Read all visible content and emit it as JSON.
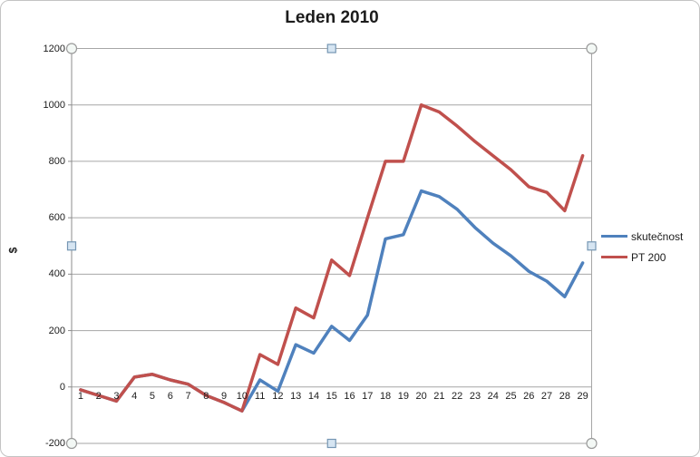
{
  "window": {
    "title": "Leden 2010"
  },
  "chart_data": {
    "type": "line",
    "title": "Leden 2010",
    "xlabel": "",
    "ylabel": "$",
    "ylim": [
      -200,
      1200
    ],
    "y_tick_step": 200,
    "y_ticks": [
      "-200",
      "0",
      "200",
      "400",
      "600",
      "800",
      "1000",
      "1200"
    ],
    "categories": [
      "1",
      "2",
      "3",
      "4",
      "5",
      "6",
      "7",
      "8",
      "9",
      "10",
      "11",
      "12",
      "13",
      "14",
      "15",
      "16",
      "17",
      "18",
      "19",
      "20",
      "21",
      "22",
      "23",
      "24",
      "25",
      "26",
      "27",
      "28",
      "29"
    ],
    "grid": true,
    "legend_position": "right",
    "series": [
      {
        "name": "skutečnost",
        "color": "#4F81BD",
        "values": [
          -10,
          -30,
          -50,
          35,
          45,
          25,
          10,
          -30,
          -55,
          -85,
          25,
          -15,
          150,
          120,
          215,
          165,
          255,
          525,
          540,
          695,
          675,
          630,
          565,
          510,
          465,
          410,
          375,
          320,
          440
        ]
      },
      {
        "name": "PT 200",
        "color": "#C0504D",
        "values": [
          -10,
          -30,
          -50,
          35,
          45,
          25,
          10,
          -30,
          -55,
          -85,
          115,
          80,
          280,
          245,
          450,
          395,
          600,
          800,
          800,
          1000,
          975,
          925,
          870,
          820,
          770,
          710,
          690,
          625,
          820
        ]
      }
    ],
    "colors": {
      "gridline": "#A6A6A6",
      "axis_line": "#8C8C8C",
      "handle_circle_fill": "#F3F8F5",
      "handle_circle_stroke": "#9A9A9A",
      "handle_square_fill": "#D6E5F2",
      "handle_square_stroke": "#7596B3"
    }
  }
}
